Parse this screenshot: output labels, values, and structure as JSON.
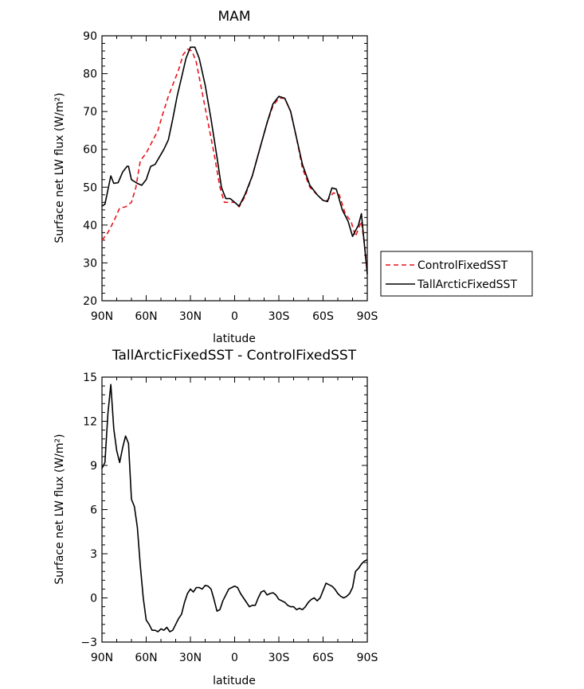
{
  "chart_data": [
    {
      "type": "line",
      "title": "MAM",
      "xlabel": "latitude",
      "ylabel": "Surface net LW flux (W/m²)",
      "xlim": [
        90,
        -90
      ],
      "ylim": [
        20,
        90
      ],
      "x_tick_values": [
        90,
        60,
        30,
        0,
        -30,
        -60,
        -90
      ],
      "x_tick_labels": [
        "90N",
        "60N",
        "30N",
        "0",
        "30S",
        "60S",
        "90S"
      ],
      "y_ticks": [
        20,
        30,
        40,
        50,
        60,
        70,
        80,
        90
      ],
      "legend": "outside-right",
      "series": [
        {
          "name": "ControlFixedSST",
          "color": "#e8141e",
          "dash": "dashed",
          "points": [
            [
              90,
              36
            ],
            [
              86,
              38
            ],
            [
              82,
              41
            ],
            [
              78,
              44.5
            ],
            [
              74,
              44.8
            ],
            [
              70,
              46
            ],
            [
              67,
              50
            ],
            [
              64,
              57
            ],
            [
              60,
              59
            ],
            [
              56,
              62
            ],
            [
              52,
              65
            ],
            [
              49,
              69
            ],
            [
              45,
              74
            ],
            [
              42,
              77
            ],
            [
              38,
              81
            ],
            [
              35,
              85
            ],
            [
              32,
              86.5
            ],
            [
              29,
              86
            ],
            [
              26,
              83
            ],
            [
              22,
              75
            ],
            [
              18,
              67
            ],
            [
              14,
              59
            ],
            [
              10,
              50
            ],
            [
              7,
              46
            ],
            [
              3,
              46
            ],
            [
              0,
              46
            ],
            [
              -3,
              44.8
            ],
            [
              -7,
              47.5
            ],
            [
              -12,
              53
            ],
            [
              -17,
              60
            ],
            [
              -22,
              67
            ],
            [
              -26,
              71.5
            ],
            [
              -30,
              73.5
            ],
            [
              -34,
              73.5
            ],
            [
              -38,
              70
            ],
            [
              -42,
              63
            ],
            [
              -46,
              55
            ],
            [
              -51,
              50
            ],
            [
              -56,
              48
            ],
            [
              -60,
              46.5
            ],
            [
              -63,
              46.5
            ],
            [
              -67,
              48.5
            ],
            [
              -71,
              48
            ],
            [
              -75,
              43
            ],
            [
              -79,
              41
            ],
            [
              -82,
              37
            ],
            [
              -86,
              41
            ],
            [
              -88,
              35
            ],
            [
              -90,
              28
            ]
          ]
        },
        {
          "name": "TallArcticFixedSST",
          "color": "#000000",
          "dash": "solid",
          "points": [
            [
              90,
              45
            ],
            [
              88,
              45.5
            ],
            [
              84,
              53
            ],
            [
              82,
              51
            ],
            [
              79,
              51.2
            ],
            [
              76,
              54
            ],
            [
              73,
              55.5
            ],
            [
              72,
              55.5
            ],
            [
              70,
              52
            ],
            [
              66,
              51
            ],
            [
              63,
              50.5
            ],
            [
              60,
              52
            ],
            [
              57,
              55.5
            ],
            [
              54,
              56
            ],
            [
              51,
              58
            ],
            [
              48,
              60
            ],
            [
              45,
              62.5
            ],
            [
              42,
              68
            ],
            [
              39,
              74
            ],
            [
              36,
              79
            ],
            [
              33,
              84
            ],
            [
              30,
              87
            ],
            [
              27,
              87
            ],
            [
              24,
              84
            ],
            [
              20,
              77
            ],
            [
              16,
              68
            ],
            [
              12,
              58
            ],
            [
              9,
              50
            ],
            [
              6,
              47
            ],
            [
              3,
              47
            ],
            [
              0,
              46
            ],
            [
              -3,
              45
            ],
            [
              -7,
              48
            ],
            [
              -12,
              53
            ],
            [
              -17,
              60
            ],
            [
              -22,
              67
            ],
            [
              -26,
              72
            ],
            [
              -30,
              74
            ],
            [
              -34,
              73.5
            ],
            [
              -38,
              70
            ],
            [
              -42,
              63
            ],
            [
              -46,
              56
            ],
            [
              -51,
              50.5
            ],
            [
              -56,
              48
            ],
            [
              -60,
              46.5
            ],
            [
              -63,
              46.2
            ],
            [
              -66,
              49.8
            ],
            [
              -69,
              49.5
            ],
            [
              -73,
              44
            ],
            [
              -77,
              41
            ],
            [
              -80,
              37
            ],
            [
              -84,
              40
            ],
            [
              -86,
              43
            ],
            [
              -88,
              35
            ],
            [
              -90,
              27
            ]
          ]
        }
      ]
    },
    {
      "type": "line",
      "title": "TallArcticFixedSST - ControlFixedSST",
      "xlabel": "latitude",
      "ylabel": "Surface net LW flux (W/m²)",
      "xlim": [
        90,
        -90
      ],
      "ylim": [
        -3,
        15
      ],
      "x_tick_values": [
        90,
        60,
        30,
        0,
        -30,
        -60,
        -90
      ],
      "x_tick_labels": [
        "90N",
        "60N",
        "30N",
        "0",
        "30S",
        "60S",
        "90S"
      ],
      "y_ticks": [
        -3,
        0,
        3,
        6,
        9,
        12,
        15
      ],
      "series": [
        {
          "color": "#000000",
          "dash": "solid",
          "points": [
            [
              90,
              8.8
            ],
            [
              88,
              9.2
            ],
            [
              86,
              12.5
            ],
            [
              84,
              14.5
            ],
            [
              82,
              11.5
            ],
            [
              80,
              10
            ],
            [
              78,
              9.2
            ],
            [
              76,
              10.2
            ],
            [
              74,
              11
            ],
            [
              72,
              10.5
            ],
            [
              70,
              6.7
            ],
            [
              68,
              6.2
            ],
            [
              66,
              4.8
            ],
            [
              64,
              2.2
            ],
            [
              62,
              0
            ],
            [
              60,
              -1.5
            ],
            [
              58,
              -1.8
            ],
            [
              56,
              -2.2
            ],
            [
              54,
              -2.2
            ],
            [
              52,
              -2.3
            ],
            [
              50,
              -2.1
            ],
            [
              48,
              -2.2
            ],
            [
              46,
              -2
            ],
            [
              44,
              -2.3
            ],
            [
              42,
              -2.2
            ],
            [
              40,
              -1.8
            ],
            [
              38,
              -1.4
            ],
            [
              36,
              -1.1
            ],
            [
              34,
              -0.3
            ],
            [
              32,
              0.3
            ],
            [
              30,
              0.6
            ],
            [
              28,
              0.4
            ],
            [
              26,
              0.7
            ],
            [
              24,
              0.7
            ],
            [
              22,
              0.6
            ],
            [
              20,
              0.85
            ],
            [
              18,
              0.8
            ],
            [
              16,
              0.6
            ],
            [
              14,
              -0.1
            ],
            [
              12,
              -0.9
            ],
            [
              10,
              -0.8
            ],
            [
              8,
              -0.2
            ],
            [
              6,
              0.2
            ],
            [
              4,
              0.6
            ],
            [
              2,
              0.7
            ],
            [
              0,
              0.8
            ],
            [
              -2,
              0.7
            ],
            [
              -4,
              0.3
            ],
            [
              -6,
              0
            ],
            [
              -8,
              -0.3
            ],
            [
              -10,
              -0.6
            ],
            [
              -12,
              -0.5
            ],
            [
              -14,
              -0.5
            ],
            [
              -16,
              0
            ],
            [
              -18,
              0.4
            ],
            [
              -20,
              0.5
            ],
            [
              -22,
              0.2
            ],
            [
              -24,
              0.3
            ],
            [
              -26,
              0.35
            ],
            [
              -28,
              0.2
            ],
            [
              -30,
              -0.1
            ],
            [
              -32,
              -0.2
            ],
            [
              -34,
              -0.3
            ],
            [
              -36,
              -0.5
            ],
            [
              -38,
              -0.6
            ],
            [
              -40,
              -0.6
            ],
            [
              -42,
              -0.8
            ],
            [
              -44,
              -0.7
            ],
            [
              -46,
              -0.8
            ],
            [
              -48,
              -0.6
            ],
            [
              -50,
              -0.3
            ],
            [
              -52,
              -0.1
            ],
            [
              -54,
              0
            ],
            [
              -56,
              -0.2
            ],
            [
              -58,
              0
            ],
            [
              -60,
              0.5
            ],
            [
              -62,
              1
            ],
            [
              -64,
              0.9
            ],
            [
              -66,
              0.8
            ],
            [
              -68,
              0.6
            ],
            [
              -70,
              0.3
            ],
            [
              -72,
              0.1
            ],
            [
              -74,
              0
            ],
            [
              -76,
              0.1
            ],
            [
              -78,
              0.3
            ],
            [
              -80,
              0.7
            ],
            [
              -82,
              1.8
            ],
            [
              -84,
              2
            ],
            [
              -86,
              2.3
            ],
            [
              -88,
              2.5
            ],
            [
              -90,
              2.6
            ]
          ]
        }
      ]
    }
  ]
}
